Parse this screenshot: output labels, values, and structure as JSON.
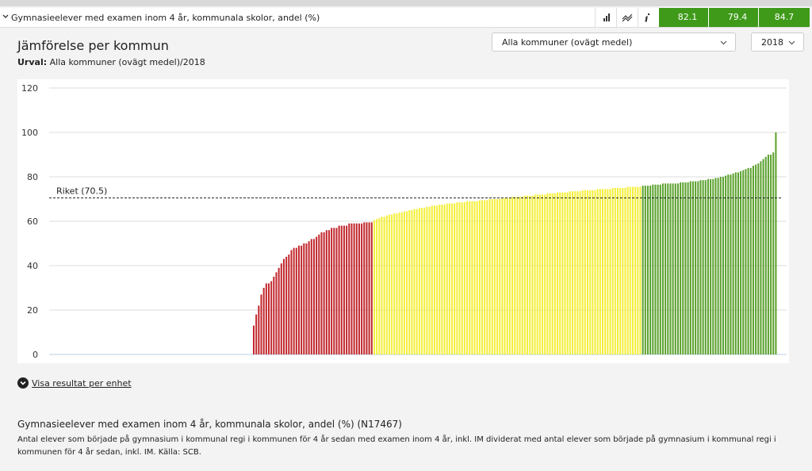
{
  "header": {
    "title": "Gymnasieelever med examen inom 4 år, kommunala skolor, andel (%)",
    "kpis": [
      82.1,
      79.4,
      84.7
    ]
  },
  "panel": {
    "title": "Jämförelse per kommun",
    "selection_label": "Urval:",
    "selection": "Alla kommuner (ovägt medel)/2018",
    "dropdown_group": "Alla kommuner (ovägt medel)",
    "dropdown_year": "2018",
    "link": "Visa resultat per enhet"
  },
  "chart_data": {
    "type": "bar",
    "ylim": [
      0,
      120
    ],
    "yticks": [
      0,
      20,
      40,
      60,
      80,
      100,
      120
    ],
    "grid": true,
    "reference": {
      "label": "Riket (70.5)",
      "value": 70.5
    },
    "series": [
      {
        "values": [
          null,
          null,
          null,
          null,
          null,
          null,
          null,
          null,
          null,
          null,
          null,
          null,
          null,
          null,
          null,
          null,
          null,
          null,
          null,
          null,
          null,
          null,
          null,
          null,
          null,
          null,
          null,
          null,
          null,
          null,
          null,
          null,
          null,
          null,
          null,
          null,
          null,
          null,
          null,
          null,
          null,
          null,
          null,
          null,
          null,
          null,
          null,
          null,
          null,
          null,
          null,
          null,
          null,
          null,
          null,
          null,
          null,
          null,
          null,
          null,
          null,
          null,
          null,
          null,
          null,
          null,
          null,
          null,
          null,
          null,
          null,
          null,
          null,
          null,
          null,
          null,
          null,
          null,
          null,
          null,
          null
        ]
      },
      {
        "color": "#c1272d",
        "values": [
          13,
          18,
          22,
          27,
          30,
          32,
          32,
          33,
          35,
          37,
          39,
          41,
          43,
          44,
          45,
          47,
          48,
          48,
          49,
          49,
          50,
          50,
          51,
          52,
          52,
          53,
          54,
          55,
          55,
          56,
          56,
          57,
          57,
          57,
          58,
          58,
          58,
          58,
          59,
          59,
          59,
          59,
          59,
          59,
          59.5,
          59.5,
          59.5,
          59.5
        ]
      },
      {
        "color": "#f4ef3a",
        "values": [
          60.5,
          61,
          61.5,
          62,
          62,
          62.5,
          63,
          63,
          63.5,
          63.5,
          64,
          64,
          64.5,
          64.5,
          65,
          65,
          65.5,
          65.5,
          66,
          66,
          66,
          66.5,
          66.5,
          67,
          67,
          67,
          67.5,
          67.5,
          67.5,
          68,
          68,
          68,
          68,
          68.5,
          68.5,
          68.5,
          68.5,
          69,
          69,
          69,
          69,
          69,
          69.5,
          69.5,
          69.5,
          69.5,
          70,
          70,
          70,
          70,
          70,
          70.5,
          70.5,
          70.5,
          70.5,
          71,
          71,
          71,
          71,
          71,
          71.5,
          71.5,
          71.5,
          71.5,
          72,
          72,
          72,
          72,
          72,
          72.5,
          72.5,
          72.5,
          72.5,
          73,
          73,
          73,
          73,
          73,
          73.5,
          73.5,
          73.5,
          73.5,
          73.5,
          74,
          74,
          74,
          74,
          74,
          74,
          74.5,
          74.5,
          74.5,
          74.5,
          74.5,
          74.5,
          75,
          75,
          75,
          75,
          75,
          75,
          75.5,
          75.5,
          75.5,
          75.5,
          75.5,
          75.5
        ]
      },
      {
        "color": "#5ba12d",
        "values": [
          76,
          76,
          76,
          76,
          76.5,
          76.5,
          76.5,
          76.5,
          77,
          77,
          77,
          77,
          77,
          77,
          77,
          77.5,
          77.5,
          77.5,
          77.5,
          78,
          78,
          78,
          78,
          78.5,
          78.5,
          78.5,
          79,
          79,
          79,
          79.5,
          79.5,
          80,
          80,
          80.5,
          81,
          81,
          81.5,
          82,
          82,
          82.5,
          83,
          83.5,
          84,
          84,
          85,
          85.5,
          86,
          87,
          88,
          89,
          90,
          90,
          91,
          100
        ]
      }
    ]
  },
  "footer": {
    "title": "Gymnasieelever med examen inom 4 år, kommunala skolor, andel (%) (N17467)",
    "description": "Antal elever som började på gymnasium i kommunal regi i kommunen för 4 år sedan med examen inom 4 år, inkl. IM dividerat med antal elever som började på gymnasium i kommunal regi i kommunen för 4 år sedan, inkl. IM. Källa: SCB."
  }
}
